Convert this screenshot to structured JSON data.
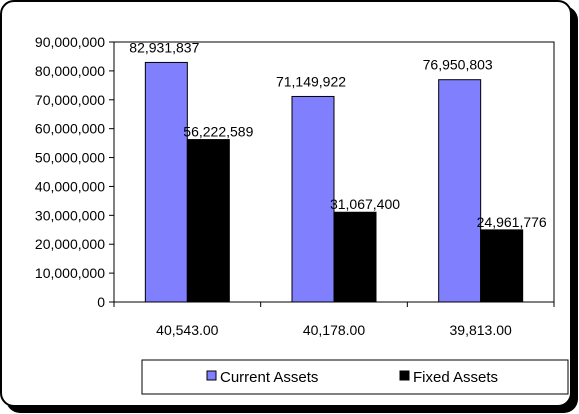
{
  "chart_data": {
    "type": "bar",
    "title": "",
    "xlabel": "",
    "ylabel": "",
    "categories": [
      "40,543.00",
      "40,178.00",
      "39,813.00"
    ],
    "series": [
      {
        "name": "Current Assets",
        "color": "#8080ff",
        "values": [
          82931837,
          71149922,
          76950803
        ],
        "labels": [
          "82,931,837",
          "71,149,922",
          "76,950,803"
        ]
      },
      {
        "name": "Fixed Assets",
        "color": "#000000",
        "values": [
          56222589,
          31067400,
          24961776
        ],
        "labels": [
          "56,222,589",
          "31,067,400",
          "24,961,776"
        ]
      }
    ],
    "ylim": [
      0,
      90000000
    ],
    "yticks": [
      0,
      10000000,
      20000000,
      30000000,
      40000000,
      50000000,
      60000000,
      70000000,
      80000000,
      90000000
    ],
    "ytick_labels": [
      "0",
      "10,000,000",
      "20,000,000",
      "30,000,000",
      "40,000,000",
      "50,000,000",
      "60,000,000",
      "70,000,000",
      "80,000,000",
      "90,000,000"
    ],
    "grid": false,
    "legend_position": "bottom-right"
  }
}
